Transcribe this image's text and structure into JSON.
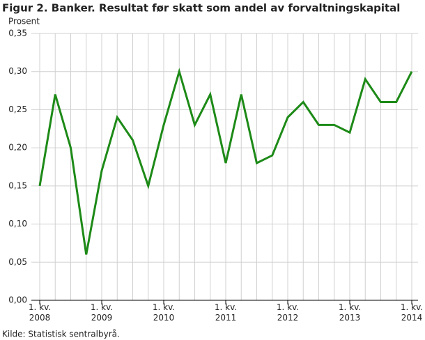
{
  "chart_data": {
    "type": "line",
    "title": "Figur 2. Banker. Resultat før skatt som andel av forvaltningskapital",
    "y_label": "Prosent",
    "source": "Kilde: Statistisk sentralbyrå.",
    "categories": [
      "1. kv.\n2008",
      null,
      null,
      null,
      "1. kv.\n2009",
      null,
      null,
      null,
      "1. kv.\n2010",
      null,
      null,
      null,
      "1. kv.\n2011",
      null,
      null,
      null,
      "1. kv.\n2012",
      null,
      null,
      null,
      "1. kv.\n2013",
      null,
      null,
      null,
      "1. kv.\n2014"
    ],
    "values": [
      0.15,
      0.27,
      0.2,
      0.06,
      0.17,
      0.24,
      0.21,
      0.15,
      0.23,
      0.3,
      0.23,
      0.27,
      0.18,
      0.27,
      0.18,
      0.19,
      0.24,
      0.26,
      0.23,
      0.23,
      0.22,
      0.29,
      0.26,
      0.26,
      0.3
    ],
    "color": "#1d8a17",
    "ylim": [
      0,
      0.35
    ],
    "yticks": [
      {
        "value": 0,
        "label": "0,00"
      },
      {
        "value": 0.05,
        "label": "0,05"
      },
      {
        "value": 0.1,
        "label": "0,10"
      },
      {
        "value": 0.15,
        "label": "0,15"
      },
      {
        "value": 0.2,
        "label": "0,20"
      },
      {
        "value": 0.25,
        "label": "0,25"
      },
      {
        "value": 0.3,
        "label": "0,30"
      },
      {
        "value": 0.35,
        "label": "0,35"
      }
    ],
    "grid": true
  }
}
